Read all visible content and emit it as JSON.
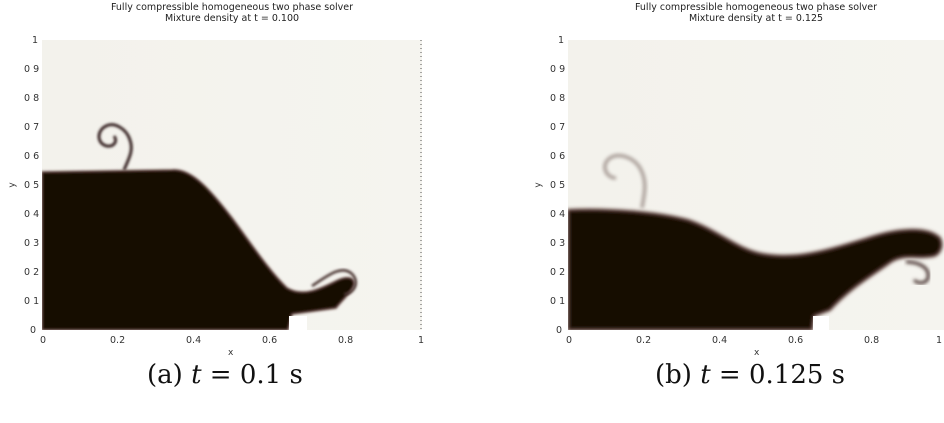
{
  "panels": [
    {
      "title_line1": "Fully compressible homogeneous two phase solver",
      "title_line2": "Mixture density at t = 0.100",
      "x_ticks": [
        "0",
        "0.2",
        "0.4",
        "0.6",
        "0.8",
        "1"
      ],
      "y_ticks": [
        "0",
        "0 1",
        "0 2",
        "0 3",
        "0 4",
        "0 5",
        "0 6",
        "0 7",
        "0 8",
        "0 9",
        "1"
      ],
      "xlabel": "x",
      "ylabel": "y",
      "caption_label": "(a)",
      "caption_var": "t",
      "caption_eq": "= 0.1 s"
    },
    {
      "title_line1": "Fully compressible homogeneous two phase solver",
      "title_line2": "Mixture density at t = 0.125",
      "x_ticks": [
        "0",
        "0.2",
        "0.4",
        "0.6",
        "0.8",
        "1"
      ],
      "y_ticks": [
        "0",
        "0 1",
        "0 2",
        "0 3",
        "0 4",
        "0 5",
        "0 6",
        "0 7",
        "0 8",
        "0 9",
        "1"
      ],
      "xlabel": "x",
      "ylabel": "y",
      "caption_label": "(b)",
      "caption_var": "t",
      "caption_eq": "= 0.125 s"
    }
  ],
  "colors": {
    "liquid": "#120806",
    "gas": "#f4f3ee",
    "interface": "#5a3a36"
  }
}
